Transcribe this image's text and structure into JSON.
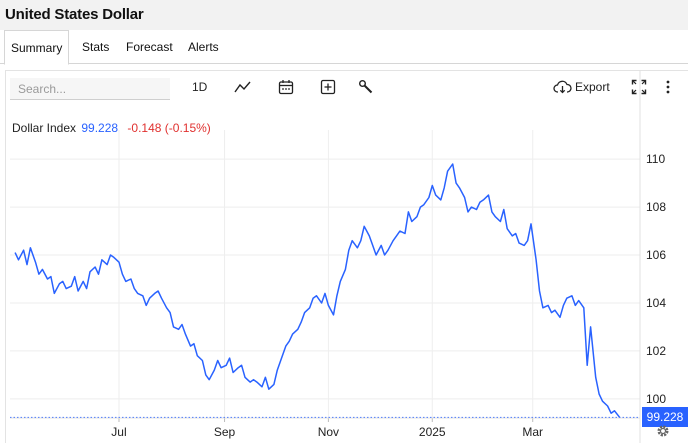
{
  "header": {
    "title": "United States Dollar"
  },
  "tabs": [
    {
      "label": "Summary",
      "active": true
    },
    {
      "label": "Stats"
    },
    {
      "label": "Forecast"
    },
    {
      "label": "Alerts"
    }
  ],
  "toolbar": {
    "search_placeholder": "Search...",
    "interval_label": "1D",
    "export_label": "Export",
    "icons": [
      "line-chart-icon",
      "calendar-icon",
      "add-indicator-icon",
      "wrench-icon",
      "cloud-download-icon",
      "fullscreen-icon",
      "more-vertical-icon"
    ]
  },
  "legend": {
    "name": "Dollar Index",
    "value": "99.228",
    "change": "-0.148 (-0.15%)"
  },
  "price_tag": "99.228",
  "colors": {
    "line": "#2962ff",
    "down": "#e0312f",
    "grid": "#eeeeee"
  },
  "chart_data": {
    "type": "line",
    "title": "",
    "xlabel": "",
    "ylabel": "",
    "ylim": [
      99.2,
      110.8
    ],
    "yticks": [
      "100",
      "102",
      "104",
      "106",
      "108",
      "110"
    ],
    "xticks": [
      {
        "label": "Jul",
        "date": "2024-07-01"
      },
      {
        "label": "Sep",
        "date": "2024-09-01"
      },
      {
        "label": "Nov",
        "date": "2024-11-01"
      },
      {
        "label": "2025",
        "date": "2025-01-01"
      },
      {
        "label": "Mar",
        "date": "2025-03-01"
      }
    ],
    "grid": true,
    "last_value": 99.228,
    "series": [
      {
        "x": [
          "2024-05-01",
          "2024-05-03",
          "2024-05-06",
          "2024-05-08",
          "2024-05-10",
          "2024-05-13",
          "2024-05-15",
          "2024-05-17",
          "2024-05-20",
          "2024-05-22",
          "2024-05-24",
          "2024-05-27",
          "2024-05-29",
          "2024-05-31",
          "2024-06-03",
          "2024-06-05",
          "2024-06-07",
          "2024-06-10",
          "2024-06-12",
          "2024-06-14",
          "2024-06-17",
          "2024-06-19",
          "2024-06-21",
          "2024-06-24",
          "2024-06-26",
          "2024-06-28",
          "2024-07-01",
          "2024-07-03",
          "2024-07-05",
          "2024-07-08",
          "2024-07-10",
          "2024-07-12",
          "2024-07-15",
          "2024-07-17",
          "2024-07-19",
          "2024-07-22",
          "2024-07-24",
          "2024-07-26",
          "2024-07-29",
          "2024-07-31",
          "2024-08-02",
          "2024-08-05",
          "2024-08-07",
          "2024-08-09",
          "2024-08-12",
          "2024-08-14",
          "2024-08-16",
          "2024-08-19",
          "2024-08-21",
          "2024-08-23",
          "2024-08-26",
          "2024-08-28",
          "2024-08-30",
          "2024-09-02",
          "2024-09-04",
          "2024-09-06",
          "2024-09-09",
          "2024-09-11",
          "2024-09-13",
          "2024-09-16",
          "2024-09-18",
          "2024-09-20",
          "2024-09-23",
          "2024-09-25",
          "2024-09-27",
          "2024-09-30",
          "2024-10-02",
          "2024-10-04",
          "2024-10-07",
          "2024-10-09",
          "2024-10-11",
          "2024-10-14",
          "2024-10-16",
          "2024-10-18",
          "2024-10-21",
          "2024-10-23",
          "2024-10-25",
          "2024-10-28",
          "2024-10-30",
          "2024-11-01",
          "2024-11-04",
          "2024-11-06",
          "2024-11-08",
          "2024-11-11",
          "2024-11-13",
          "2024-11-15",
          "2024-11-18",
          "2024-11-20",
          "2024-11-22",
          "2024-11-25",
          "2024-11-27",
          "2024-11-29",
          "2024-12-02",
          "2024-12-04",
          "2024-12-06",
          "2024-12-09",
          "2024-12-11",
          "2024-12-13",
          "2024-12-16",
          "2024-12-18",
          "2024-12-20",
          "2024-12-23",
          "2024-12-25",
          "2024-12-27",
          "2024-12-30",
          "2025-01-01",
          "2025-01-03",
          "2025-01-06",
          "2025-01-08",
          "2025-01-10",
          "2025-01-13",
          "2025-01-15",
          "2025-01-17",
          "2025-01-20",
          "2025-01-22",
          "2025-01-24",
          "2025-01-27",
          "2025-01-29",
          "2025-01-31",
          "2025-02-03",
          "2025-02-05",
          "2025-02-07",
          "2025-02-10",
          "2025-02-12",
          "2025-02-14",
          "2025-02-17",
          "2025-02-19",
          "2025-02-21",
          "2025-02-24",
          "2025-02-26",
          "2025-02-28",
          "2025-03-03",
          "2025-03-05",
          "2025-03-07",
          "2025-03-10",
          "2025-03-12",
          "2025-03-14",
          "2025-03-17",
          "2025-03-19",
          "2025-03-21",
          "2025-03-24",
          "2025-03-26",
          "2025-03-28",
          "2025-03-31",
          "2025-04-02",
          "2025-04-04",
          "2025-04-07",
          "2025-04-09",
          "2025-04-11",
          "2025-04-14",
          "2025-04-16",
          "2025-04-18",
          "2025-04-21"
        ],
        "y": [
          106.1,
          105.8,
          106.2,
          105.6,
          106.3,
          105.7,
          105.2,
          105.4,
          105.0,
          105.1,
          104.4,
          104.8,
          104.9,
          104.6,
          104.7,
          105.1,
          104.5,
          104.9,
          104.6,
          105.3,
          105.5,
          105.2,
          105.8,
          105.6,
          106.0,
          105.9,
          105.7,
          105.2,
          104.9,
          105.0,
          104.6,
          104.4,
          104.3,
          103.9,
          104.2,
          104.4,
          104.5,
          104.2,
          103.8,
          103.6,
          103.0,
          102.9,
          103.1,
          102.7,
          102.2,
          102.3,
          101.8,
          101.6,
          101.0,
          100.8,
          101.2,
          101.6,
          101.3,
          101.4,
          101.7,
          101.1,
          101.3,
          101.4,
          100.9,
          100.7,
          100.8,
          100.7,
          100.5,
          100.9,
          100.4,
          100.6,
          101.2,
          101.6,
          102.2,
          102.4,
          102.7,
          102.9,
          103.2,
          103.6,
          103.8,
          104.2,
          104.3,
          104.0,
          104.4,
          103.9,
          103.5,
          104.3,
          104.9,
          105.4,
          106.2,
          106.6,
          106.3,
          106.6,
          107.2,
          106.8,
          106.4,
          106.0,
          106.4,
          106.0,
          106.2,
          106.6,
          106.8,
          107.0,
          106.9,
          107.8,
          107.4,
          107.6,
          108.0,
          108.1,
          108.4,
          108.9,
          108.5,
          108.3,
          108.8,
          109.5,
          109.8,
          109.0,
          108.8,
          108.4,
          107.8,
          108.0,
          107.9,
          108.2,
          108.3,
          108.5,
          107.8,
          107.6,
          107.4,
          107.9,
          107.1,
          106.8,
          106.9,
          106.5,
          106.4,
          106.6,
          107.3,
          105.8,
          104.5,
          103.8,
          103.9,
          103.6,
          103.7,
          103.4,
          103.9,
          104.2,
          104.3,
          103.9,
          104.1,
          103.8,
          101.4,
          103.0,
          100.9,
          100.2,
          99.9,
          99.7,
          99.4,
          99.5,
          99.228
        ]
      }
    ]
  }
}
